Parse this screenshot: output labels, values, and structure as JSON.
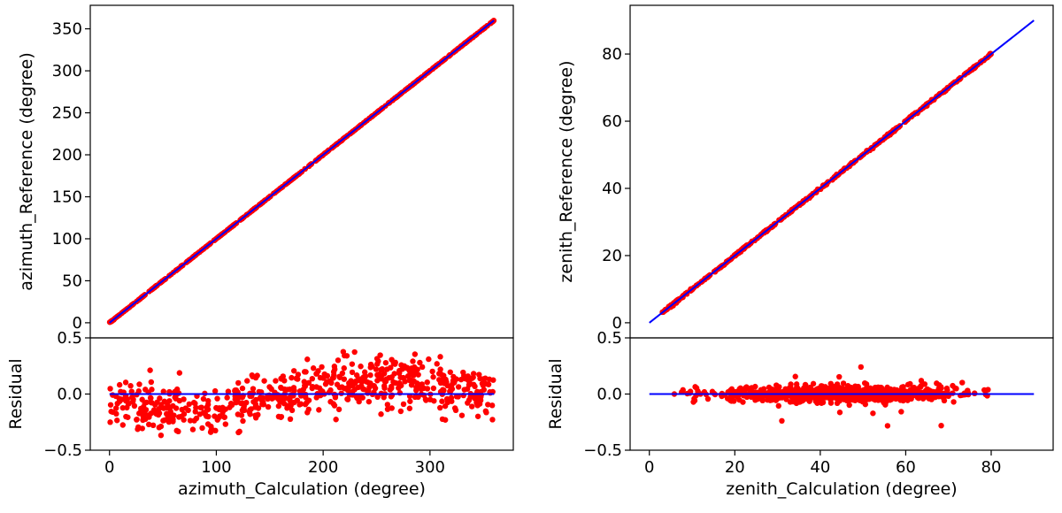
{
  "chart_data": [
    {
      "type": "scatter",
      "panel": "azimuth-main",
      "xlabel": "",
      "ylabel": "azimuth_Reference (degree)",
      "xlim": [
        -18,
        378
      ],
      "ylim": [
        -18,
        378
      ],
      "yticks": [
        0,
        50,
        100,
        150,
        200,
        250,
        300,
        350
      ],
      "series": [
        {
          "name": "points",
          "color": "#ff0000",
          "start": 0,
          "end": 360
        },
        {
          "name": "fit-line",
          "color": "#0000ff",
          "x": [
            0,
            360
          ],
          "y": [
            0,
            360
          ]
        }
      ]
    },
    {
      "type": "scatter",
      "panel": "azimuth-residual",
      "xlabel": "azimuth_Calculation (degree)",
      "ylabel": "Residual",
      "xlim": [
        -18,
        378
      ],
      "ylim": [
        -0.5,
        0.5
      ],
      "xticks": [
        0,
        100,
        200,
        300
      ],
      "yticks": [
        -0.5,
        0.0,
        0.5
      ],
      "ytick_labels": [
        "−0.5",
        "0.0",
        "0.5"
      ],
      "series": [
        {
          "name": "residuals",
          "color": "#ff0000"
        },
        {
          "name": "zero-line",
          "color": "#0000ff",
          "x": [
            0,
            360
          ],
          "y": [
            0,
            0
          ]
        }
      ],
      "trend_x": [
        0,
        50,
        100,
        150,
        200,
        250,
        300,
        360
      ],
      "trend_y": [
        -0.05,
        -0.15,
        -0.18,
        -0.05,
        0.07,
        0.14,
        0.08,
        0.0
      ]
    },
    {
      "type": "scatter",
      "panel": "zenith-main",
      "xlabel": "",
      "ylabel": "zenith_Reference (degree)",
      "xlim": [
        -4.5,
        94.5
      ],
      "ylim": [
        -4.5,
        94.5
      ],
      "yticks": [
        0,
        20,
        40,
        60,
        80
      ],
      "series": [
        {
          "name": "points",
          "color": "#ff0000",
          "start": 3,
          "end": 80
        },
        {
          "name": "fit-line",
          "color": "#0000ff",
          "x": [
            0,
            90
          ],
          "y": [
            0,
            90
          ]
        }
      ]
    },
    {
      "type": "scatter",
      "panel": "zenith-residual",
      "xlabel": "zenith_Calculation (degree)",
      "ylabel": "Residual",
      "xlim": [
        -4.5,
        94.5
      ],
      "ylim": [
        -0.5,
        0.5
      ],
      "xticks": [
        0,
        20,
        40,
        60,
        80
      ],
      "yticks": [
        -0.5,
        0.0,
        0.5
      ],
      "ytick_labels": [
        "−0.5",
        "0.0",
        "0.5"
      ],
      "series": [
        {
          "name": "residuals",
          "color": "#ff0000"
        },
        {
          "name": "zero-line",
          "color": "#0000ff",
          "x": [
            0,
            90
          ],
          "y": [
            0,
            0
          ]
        }
      ],
      "trend_x": [
        3,
        20,
        40,
        60,
        80
      ],
      "trend_y": [
        0.0,
        0.0,
        0.0,
        0.0,
        0.0
      ]
    }
  ]
}
